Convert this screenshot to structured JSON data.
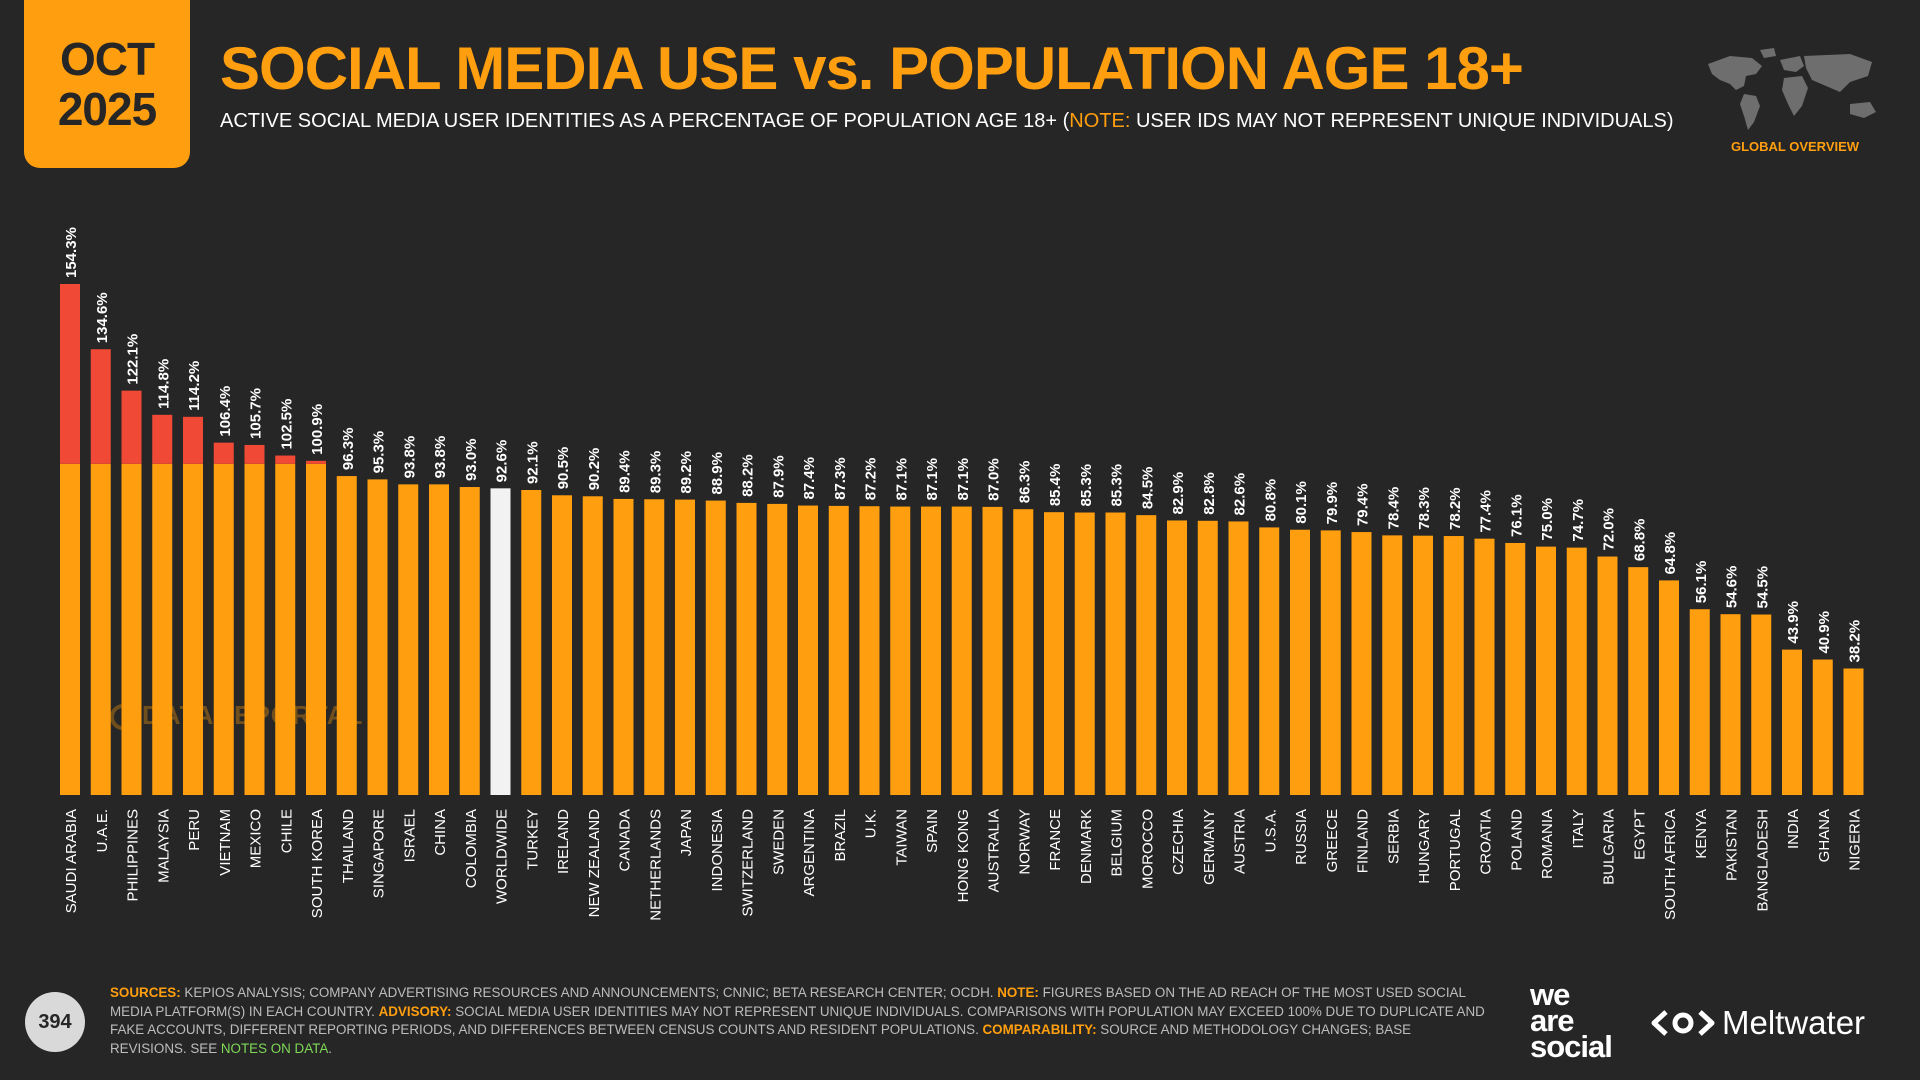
{
  "header": {
    "month": "OCT",
    "year": "2025",
    "title": "SOCIAL MEDIA USE vs. POPULATION AGE 18+",
    "subtitle_main": "ACTIVE SOCIAL MEDIA USER IDENTITIES AS A PERCENTAGE OF POPULATION AGE 18+ (",
    "subtitle_note_label": "NOTE:",
    "subtitle_note": " USER IDS MAY NOT REPRESENT UNIQUE INDIVIDUALS)",
    "section_label": "GLOBAL OVERVIEW"
  },
  "watermark": "DATAREPORTAL",
  "page_number": "394",
  "footer": {
    "sources_label": "SOURCES:",
    "sources": " KEPIOS ANALYSIS; COMPANY ADVERTISING RESOURCES AND ANNOUNCEMENTS; CNNIC; BETA RESEARCH CENTER; OCDH. ",
    "note_label": "NOTE:",
    "note": " FIGURES BASED ON THE AD REACH OF THE MOST USED SOCIAL MEDIA PLATFORM(S) IN EACH COUNTRY. ",
    "advisory_label": "ADVISORY:",
    "advisory": " SOCIAL MEDIA USER IDENTITIES MAY NOT REPRESENT UNIQUE INDIVIDUALS. COMPARISONS WITH POPULATION MAY EXCEED 100% DUE TO DUPLICATE AND FAKE ACCOUNTS, DIFFERENT REPORTING PERIODS, AND DIFFERENCES BETWEEN CENSUS COUNTS AND RESIDENT POPULATIONS. ",
    "comparability_label": "COMPARABILITY:",
    "comparability": " SOURCE AND METHODOLOGY CHANGES; BASE REVISIONS. SEE ",
    "link": "NOTES ON DATA",
    "end": "."
  },
  "brands": {
    "was_line1": "we",
    "was_line2": "are",
    "was_line3": "social",
    "meltwater": "Meltwater"
  },
  "colors": {
    "background": "#262626",
    "bar": "#ff9e0e",
    "over_100": "#f04a36",
    "worldwide": "#f2f2f2",
    "text": "#ffffff"
  },
  "chart_data": {
    "type": "bar",
    "ylim": [
      0,
      160
    ],
    "highlight_threshold": 100,
    "highlight_category": "WORLDWIDE",
    "categories": [
      "SAUDI ARABIA",
      "U.A.E.",
      "PHILIPPINES",
      "MALAYSIA",
      "PERU",
      "VIETNAM",
      "MEXICO",
      "CHILE",
      "SOUTH KOREA",
      "THAILAND",
      "SINGAPORE",
      "ISRAEL",
      "CHINA",
      "COLOMBIA",
      "WORLDWIDE",
      "TURKEY",
      "IRELAND",
      "NEW ZEALAND",
      "CANADA",
      "NETHERLANDS",
      "JAPAN",
      "INDONESIA",
      "SWITZERLAND",
      "SWEDEN",
      "ARGENTINA",
      "BRAZIL",
      "U.K.",
      "TAIWAN",
      "SPAIN",
      "HONG KONG",
      "AUSTRALIA",
      "NORWAY",
      "FRANCE",
      "DENMARK",
      "BELGIUM",
      "MOROCCO",
      "CZECHIA",
      "GERMANY",
      "AUSTRIA",
      "U.S.A.",
      "RUSSIA",
      "GREECE",
      "FINLAND",
      "SERBIA",
      "HUNGARY",
      "PORTUGAL",
      "CROATIA",
      "POLAND",
      "ROMANIA",
      "ITALY",
      "BULGARIA",
      "EGYPT",
      "SOUTH AFRICA",
      "KENYA",
      "PAKISTAN",
      "BANGLADESH",
      "INDIA",
      "GHANA",
      "NIGERIA"
    ],
    "values": [
      154.3,
      134.6,
      122.1,
      114.8,
      114.2,
      106.4,
      105.7,
      102.5,
      100.9,
      96.3,
      95.3,
      93.8,
      93.8,
      93.0,
      92.6,
      92.1,
      90.5,
      90.2,
      89.4,
      89.3,
      89.2,
      88.9,
      88.2,
      87.9,
      87.4,
      87.3,
      87.2,
      87.1,
      87.1,
      87.1,
      87.0,
      86.3,
      85.4,
      85.3,
      85.3,
      84.5,
      82.9,
      82.8,
      82.6,
      80.8,
      80.1,
      79.9,
      79.4,
      78.4,
      78.3,
      78.2,
      77.4,
      76.1,
      75.0,
      74.7,
      72.0,
      68.8,
      64.8,
      56.1,
      54.6,
      54.5,
      43.9,
      40.9,
      38.2
    ],
    "labels": [
      "154.3%",
      "134.6%",
      "122.1%",
      "114.8%",
      "114.2%",
      "106.4%",
      "105.7%",
      "102.5%",
      "100.9%",
      "96.3%",
      "95.3%",
      "93.8%",
      "93.8%",
      "93.0%",
      "92.6%",
      "92.1%",
      "90.5%",
      "90.2%",
      "89.4%",
      "89.3%",
      "89.2%",
      "88.9%",
      "88.2%",
      "87.9%",
      "87.4%",
      "87.3%",
      "87.2%",
      "87.1%",
      "87.1%",
      "87.1%",
      "87.0%",
      "86.3%",
      "85.4%",
      "85.3%",
      "85.3%",
      "84.5%",
      "82.9%",
      "82.8%",
      "82.6%",
      "80.8%",
      "80.1%",
      "79.9%",
      "79.4%",
      "78.4%",
      "78.3%",
      "78.2%",
      "77.4%",
      "76.1%",
      "75.0%",
      "74.7%",
      "72.0%",
      "68.8%",
      "64.8%",
      "56.1%",
      "54.6%",
      "54.5%",
      "43.9%",
      "40.9%",
      "38.2%"
    ]
  }
}
